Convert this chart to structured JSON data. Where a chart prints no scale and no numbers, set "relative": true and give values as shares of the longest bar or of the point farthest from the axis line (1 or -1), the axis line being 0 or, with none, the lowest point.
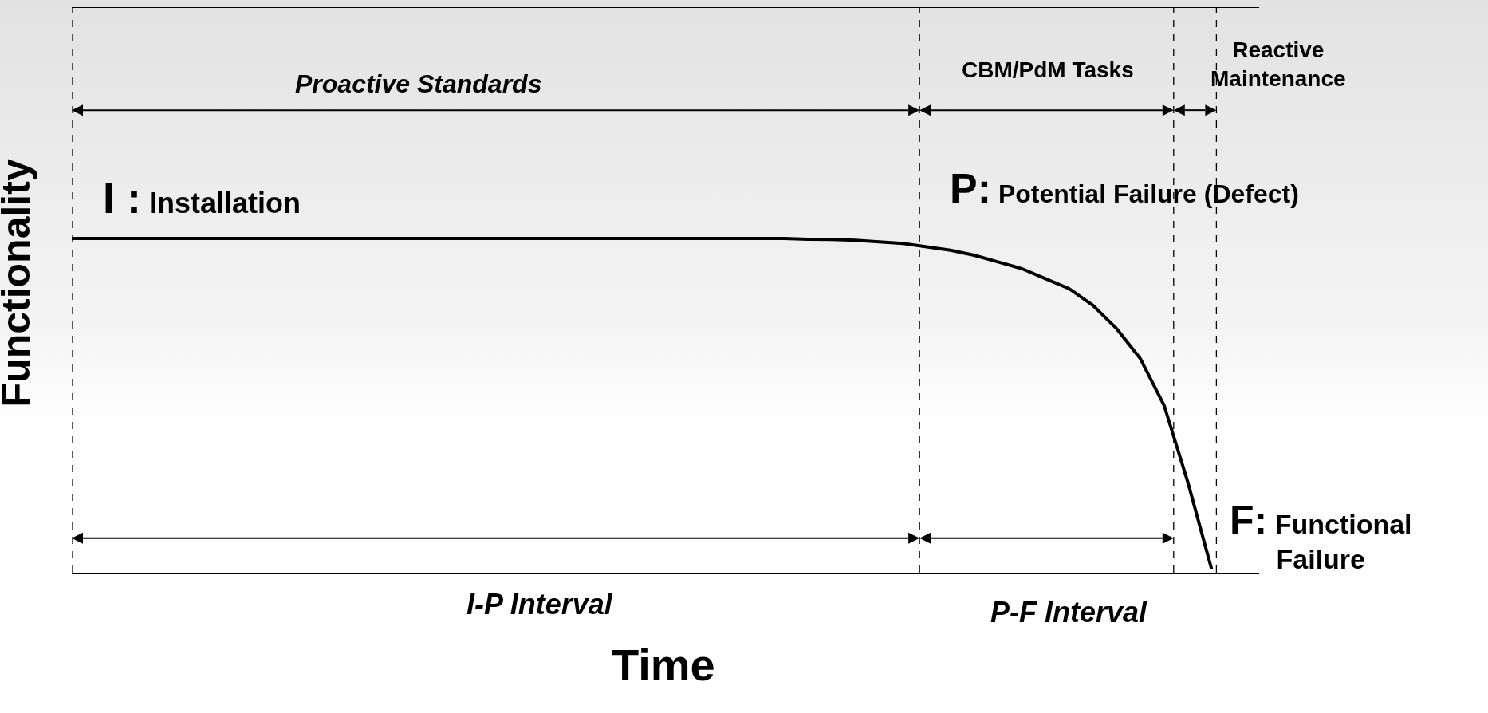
{
  "chart_data": {
    "type": "line",
    "relative": true,
    "xlabel": "Time",
    "ylabel": "Functionality",
    "categories": [
      null,
      null,
      null,
      null,
      null,
      null,
      null,
      null,
      null,
      null,
      null,
      null,
      null,
      null,
      null,
      null,
      null,
      null,
      null,
      null,
      null,
      null,
      null,
      null,
      null,
      null,
      null,
      null,
      null,
      null,
      null,
      null,
      null,
      null,
      null,
      null,
      null,
      null,
      null,
      null,
      null,
      null,
      null,
      null,
      null,
      null,
      null,
      null,
      null
    ],
    "series": [
      {
        "color": "#000000",
        "values": [
          1,
          1,
          1,
          1,
          1,
          1,
          1,
          1,
          1,
          1,
          1,
          1,
          1,
          1,
          1,
          1,
          1,
          1,
          1,
          1,
          1,
          1,
          1,
          1,
          1,
          1,
          1,
          1,
          1,
          1,
          1,
          0.998,
          0.997,
          0.995,
          0.99,
          0.985,
          0.975,
          0.965,
          0.95,
          0.93,
          0.91,
          0.88,
          0.85,
          0.8,
          0.73,
          0.64,
          0.5,
          0.27,
          0.01
        ]
      }
    ],
    "annotations": [
      "Proactive Standards",
      "CBM/PdM Tasks",
      "Reactive Maintenance",
      "I : Installation",
      "P: Potential Failure (Defect)",
      "F: Functional Failure",
      "I-P Interval",
      "P-F Interval"
    ],
    "grid": false,
    "marker": "none",
    "line_style": "solid"
  }
}
